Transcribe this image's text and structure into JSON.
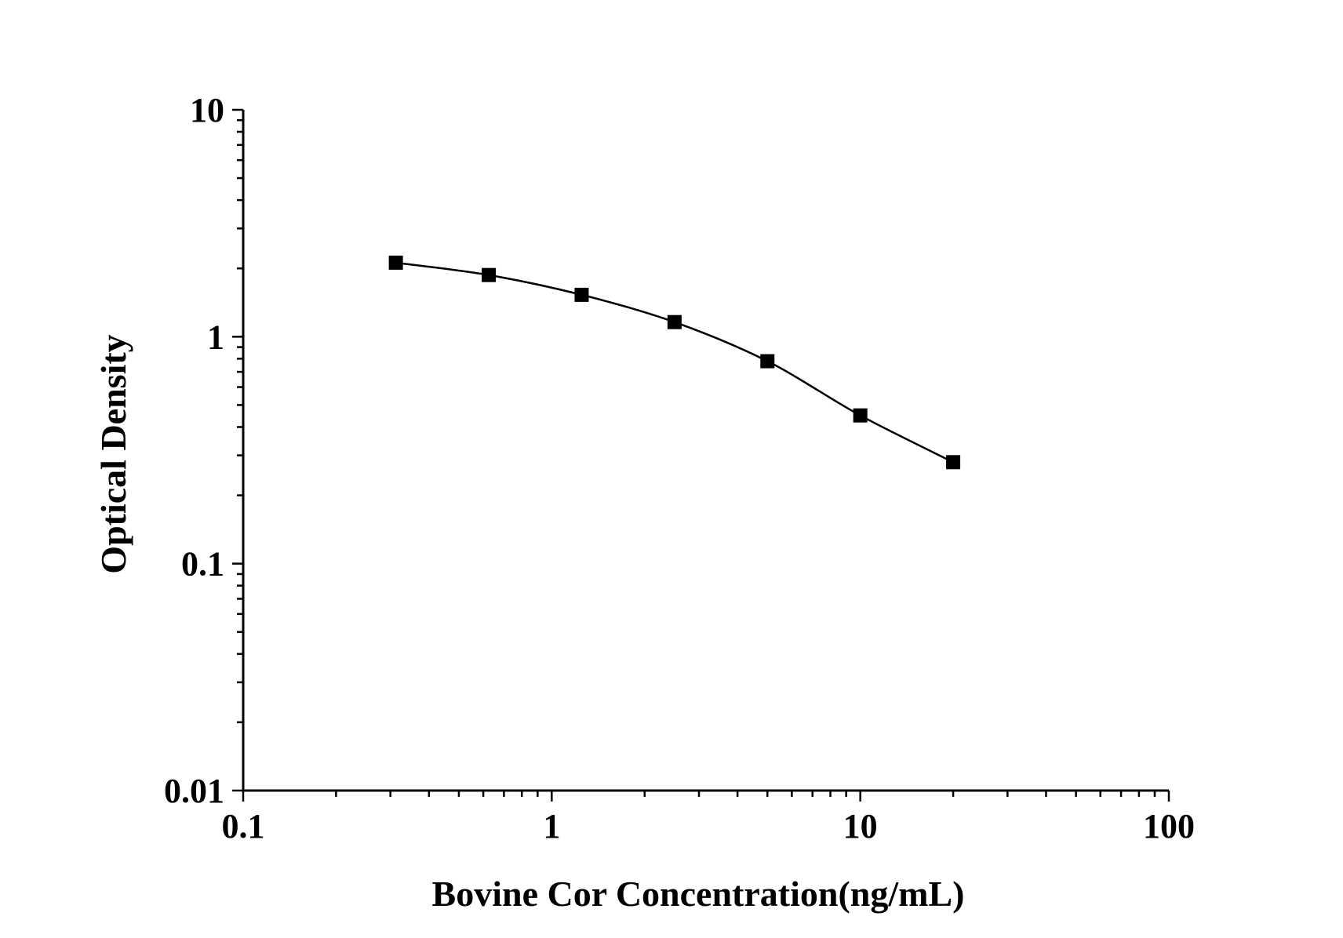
{
  "chart_data": {
    "type": "line",
    "title": "",
    "xlabel": "Bovine Cor Concentration(ng/mL)",
    "ylabel": "Optical Density",
    "x_scale": "log",
    "y_scale": "log",
    "xlim": [
      0.1,
      100
    ],
    "ylim": [
      0.01,
      10
    ],
    "x_ticks": [
      "0.1",
      "1",
      "10",
      "100"
    ],
    "y_ticks": [
      "0.01",
      "0.1",
      "1",
      "10"
    ],
    "grid": false,
    "legend": "none",
    "marker": "square",
    "line_color": "#000000",
    "marker_color": "#000000",
    "series": [
      {
        "x": [
          0.3125,
          0.625,
          1.25,
          2.5,
          5,
          10,
          20
        ],
        "y": [
          2.12,
          1.87,
          1.53,
          1.16,
          0.78,
          0.45,
          0.28
        ]
      }
    ]
  }
}
